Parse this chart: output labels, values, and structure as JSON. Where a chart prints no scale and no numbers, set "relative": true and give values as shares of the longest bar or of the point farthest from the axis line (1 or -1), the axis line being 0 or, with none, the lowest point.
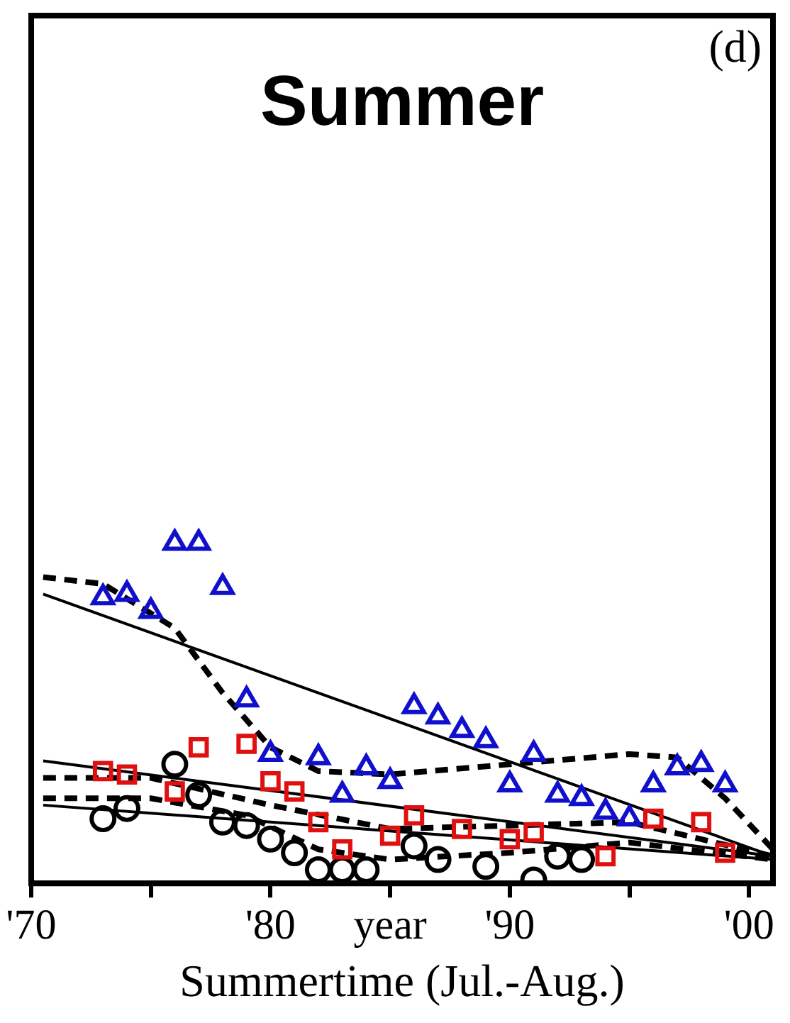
{
  "chart_data": {
    "type": "scatter",
    "title": "Summer",
    "xlabel": "Summertime (Jul.-Aug.)",
    "annotations": [
      "(d)"
    ],
    "relative": true,
    "legend": false,
    "grid": false,
    "xlim": [
      1970,
      2001
    ],
    "xticks": [
      {
        "value": 1970,
        "label": "'70"
      },
      {
        "value": 1975,
        "label": null
      },
      {
        "value": 1980,
        "label": "'80"
      },
      {
        "value": 1985,
        "label": "year"
      },
      {
        "value": 1990,
        "label": "'90"
      },
      {
        "value": 1995,
        "label": null
      },
      {
        "value": 2000,
        "label": "'00"
      }
    ],
    "series": [
      {
        "marker": "triangle",
        "color": "#1010cc",
        "x": [
          1973,
          1974,
          1975,
          1976,
          1977,
          1978,
          1979,
          1980,
          1982,
          1983,
          1984,
          1985,
          1986,
          1987,
          1988,
          1989,
          1990,
          1991,
          1992,
          1993,
          1994,
          1995,
          1996,
          1997,
          1998,
          1999
        ],
        "values": [
          0.84,
          0.85,
          0.8,
          1,
          1,
          0.87,
          0.54,
          0.38,
          0.37,
          0.26,
          0.34,
          0.3,
          0.52,
          0.49,
          0.45,
          0.42,
          0.29,
          0.38,
          0.26,
          0.25,
          0.21,
          0.19,
          0.29,
          0.34,
          0.35,
          0.29
        ]
      },
      {
        "marker": "square",
        "color": "#e01010",
        "x": [
          1973,
          1974,
          1976,
          1977,
          1979,
          1980,
          1981,
          1982,
          1983,
          1985,
          1986,
          1988,
          1990,
          1991,
          1994,
          1996,
          1998,
          1999
        ],
        "values": [
          0.33,
          0.32,
          0.27,
          0.4,
          0.41,
          0.3,
          0.27,
          0.18,
          0.1,
          0.14,
          0.2,
          0.16,
          0.13,
          0.15,
          0.08,
          0.19,
          0.18,
          0.09
        ]
      },
      {
        "marker": "circle",
        "color": "#000000",
        "x": [
          1973,
          1974,
          1976,
          1977,
          1978,
          1979,
          1980,
          1981,
          1982,
          1983,
          1984,
          1986,
          1987,
          1989,
          1991,
          1992,
          1993
        ],
        "values": [
          0.19,
          0.22,
          0.35,
          0.26,
          0.18,
          0.17,
          0.13,
          0.09,
          0.04,
          0.04,
          0.04,
          0.11,
          0.07,
          0.05,
          0.01,
          0.08,
          0.07
        ]
      },
      {
        "type": "line",
        "marker": "none",
        "line_style": "solid",
        "color": "#000000",
        "x": [
          1970.5,
          2001
        ],
        "values": [
          0.85,
          0.08
        ]
      },
      {
        "type": "line",
        "marker": "none",
        "line_style": "solid",
        "color": "#000000",
        "x": [
          1970.5,
          2001
        ],
        "values": [
          0.36,
          0.08
        ]
      },
      {
        "type": "line",
        "marker": "none",
        "line_style": "solid",
        "color": "#000000",
        "x": [
          1970.5,
          2001
        ],
        "values": [
          0.23,
          0.07
        ]
      },
      {
        "type": "line",
        "marker": "none",
        "line_style": "dashed",
        "color": "#000000",
        "x": [
          1970.5,
          1973,
          1976,
          1978,
          1980,
          1982,
          1985,
          1990,
          1995,
          1997,
          1999,
          2001
        ],
        "values": [
          0.9,
          0.88,
          0.75,
          0.56,
          0.4,
          0.33,
          0.32,
          0.35,
          0.38,
          0.37,
          0.25,
          0.1
        ]
      },
      {
        "type": "line",
        "marker": "none",
        "line_style": "dashed",
        "color": "#000000",
        "x": [
          1970.5,
          1975,
          1980,
          1985,
          1990,
          1995,
          2001
        ],
        "values": [
          0.31,
          0.31,
          0.23,
          0.16,
          0.17,
          0.18,
          0.08
        ]
      },
      {
        "type": "line",
        "marker": "none",
        "line_style": "dashed",
        "color": "#000000",
        "x": [
          1970.5,
          1975,
          1979,
          1982,
          1985,
          1990,
          1995,
          2001
        ],
        "values": [
          0.25,
          0.25,
          0.2,
          0.1,
          0.07,
          0.09,
          0.12,
          0.07
        ]
      }
    ]
  }
}
